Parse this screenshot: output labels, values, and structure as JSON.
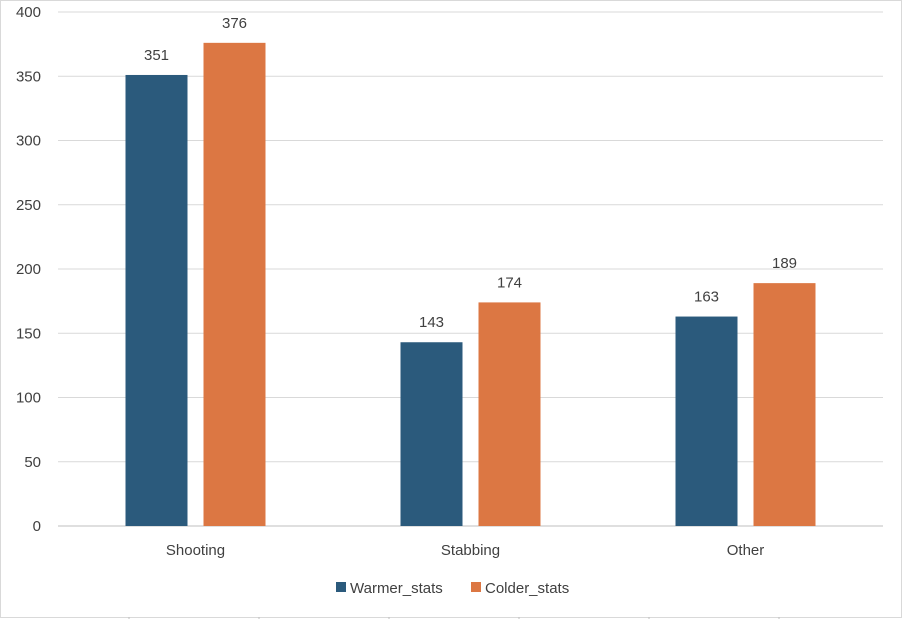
{
  "chart_data": {
    "type": "bar",
    "categories": [
      "Shooting",
      "Stabbing",
      "Other"
    ],
    "series": [
      {
        "name": "Warmer_stats",
        "values": [
          351,
          143,
          163
        ],
        "color": "#2b5a7c"
      },
      {
        "name": "Colder_stats",
        "values": [
          376,
          174,
          189
        ],
        "color": "#dc7743"
      }
    ],
    "y_ticks": [
      0,
      50,
      100,
      150,
      200,
      250,
      300,
      350,
      400
    ],
    "ylim": [
      0,
      400
    ],
    "grid": true,
    "data_labels": true,
    "legend_position": "bottom"
  }
}
